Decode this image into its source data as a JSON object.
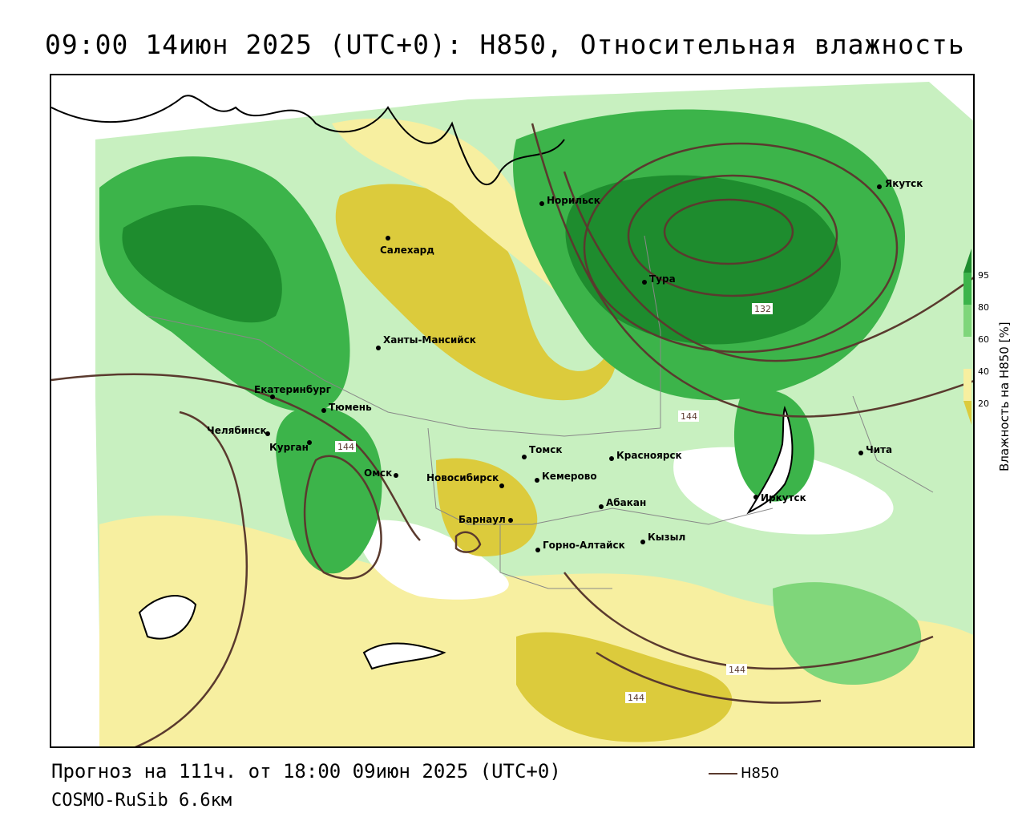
{
  "title": "09:00 14июн 2025 (UTC+0): H850, Относительная влажность",
  "footer": {
    "forecast": "Прогноз на 111ч. от 18:00 09июн 2025 (UTC+0)",
    "model": "COSMO-RuSib 6.6км",
    "line_legend_label": "H850"
  },
  "legend": {
    "title": "Влажность на H850 [%]",
    "ticks": [
      "95",
      "80",
      "60",
      "40",
      "20"
    ],
    "colors": {
      "very_wet": "#1e8c2e",
      "wet": "#3cb44a",
      "moist": "#7fd67a",
      "light": "#c8f0c0",
      "neutral": "#ffffff",
      "dry_light": "#f7efa0",
      "dry": "#dccb3c"
    }
  },
  "contour_color": "#5a3a2e",
  "contour_labels": [
    "132",
    "144",
    "144",
    "144",
    "144"
  ],
  "cities": [
    {
      "name": "Якутск"
    },
    {
      "name": "Норильск"
    },
    {
      "name": "Салехард"
    },
    {
      "name": "Тура"
    },
    {
      "name": "Ханты-Мансийск"
    },
    {
      "name": "Екатеринбург"
    },
    {
      "name": "Тюмень"
    },
    {
      "name": "Челябинск"
    },
    {
      "name": "Курган"
    },
    {
      "name": "Омск"
    },
    {
      "name": "Томск"
    },
    {
      "name": "Красноярск"
    },
    {
      "name": "Новосибирск"
    },
    {
      "name": "Кемерово"
    },
    {
      "name": "Барнаул"
    },
    {
      "name": "Абакан"
    },
    {
      "name": "Горно-Алтайск"
    },
    {
      "name": "Кызыл"
    },
    {
      "name": "Иркутск"
    },
    {
      "name": "Чита"
    }
  ]
}
